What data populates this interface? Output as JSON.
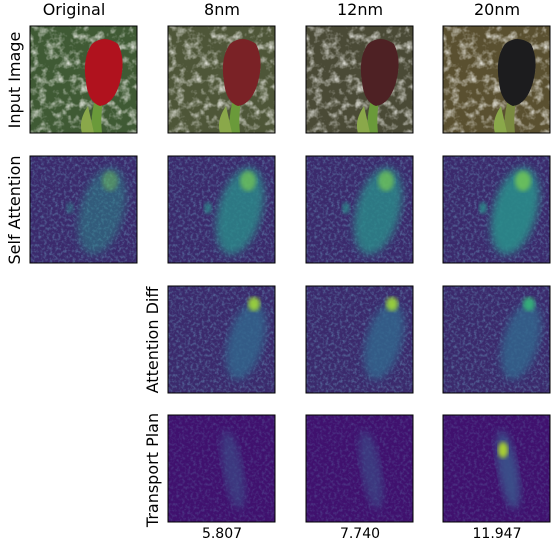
{
  "columns": [
    "Original",
    "8nm",
    "12nm",
    "20nm"
  ],
  "rows": [
    "Input Image",
    "Self Attention",
    "Attention Diff",
    "Transport Plan"
  ],
  "scores": [
    "5.807",
    "7.740",
    "11.947"
  ]
}
